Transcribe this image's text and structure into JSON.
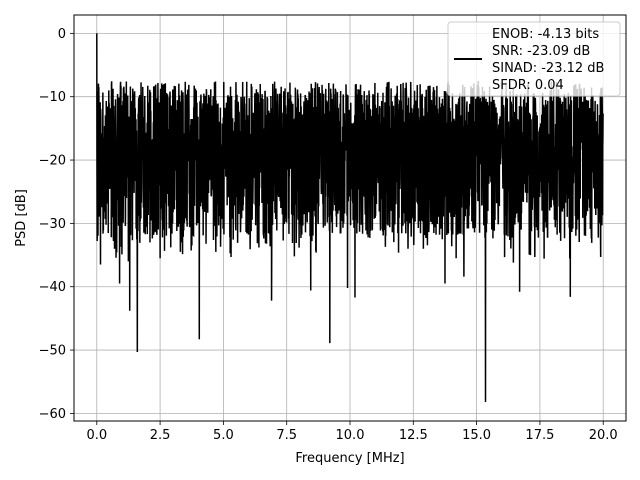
{
  "chart_data": {
    "type": "line",
    "title": "",
    "xlabel": "Frequency [MHz]",
    "ylabel": "PSD [dB]",
    "xlim": [
      -0.9,
      20.9
    ],
    "ylim": [
      -61.2,
      2.9
    ],
    "xticks": [
      0.0,
      2.5,
      5.0,
      7.5,
      10.0,
      12.5,
      15.0,
      17.5,
      20.0
    ],
    "xtick_labels": [
      "0.0",
      "2.5",
      "5.0",
      "7.5",
      "10.0",
      "12.5",
      "15.0",
      "17.5",
      "20.0"
    ],
    "yticks": [
      0,
      -10,
      -20,
      -30,
      -40,
      -50,
      -60
    ],
    "ytick_labels": [
      "0",
      "−10",
      "−20",
      "−30",
      "−40",
      "−50",
      "−60"
    ],
    "grid": true,
    "legend_position": "top-right",
    "legend_entries": [
      "ENOB: -4.13 bits",
      "SNR: -23.09 dB",
      "SINAD: -23.12 dB",
      "SFDR: 0.04"
    ],
    "series": [
      {
        "color": "#000000",
        "band_x": [
          0,
          20
        ],
        "band_upper_db": -9,
        "band_lower_db": -33,
        "peak": {
          "x": 0.0,
          "y": 0.0
        },
        "dips": [
          {
            "x": 0.15,
            "y": -36.5
          },
          {
            "x": 0.7,
            "y": -34
          },
          {
            "x": 0.9,
            "y": -39.5
          },
          {
            "x": 1.25,
            "y": -36
          },
          {
            "x": 1.3,
            "y": -43.8
          },
          {
            "x": 1.6,
            "y": -50.3
          },
          {
            "x": 2.1,
            "y": -33
          },
          {
            "x": 2.5,
            "y": -35.5
          },
          {
            "x": 3.3,
            "y": -34.5
          },
          {
            "x": 4.05,
            "y": -48.3
          },
          {
            "x": 4.7,
            "y": -34.5
          },
          {
            "x": 5.3,
            "y": -35.3
          },
          {
            "x": 6.4,
            "y": -33.8
          },
          {
            "x": 6.9,
            "y": -42.2
          },
          {
            "x": 7.8,
            "y": -35.2
          },
          {
            "x": 8.45,
            "y": -40.6
          },
          {
            "x": 9.2,
            "y": -48.9
          },
          {
            "x": 9.9,
            "y": -40.2
          },
          {
            "x": 10.2,
            "y": -41.7
          },
          {
            "x": 11.4,
            "y": -33.7
          },
          {
            "x": 12.9,
            "y": -34
          },
          {
            "x": 13.75,
            "y": -39.5
          },
          {
            "x": 14.5,
            "y": -38.4
          },
          {
            "x": 15.35,
            "y": -58.2
          },
          {
            "x": 16.45,
            "y": -36.2
          },
          {
            "x": 16.7,
            "y": -40.8
          },
          {
            "x": 17.3,
            "y": -35.3
          },
          {
            "x": 18.7,
            "y": -41.6
          },
          {
            "x": 19.9,
            "y": -35.3
          }
        ]
      }
    ]
  }
}
